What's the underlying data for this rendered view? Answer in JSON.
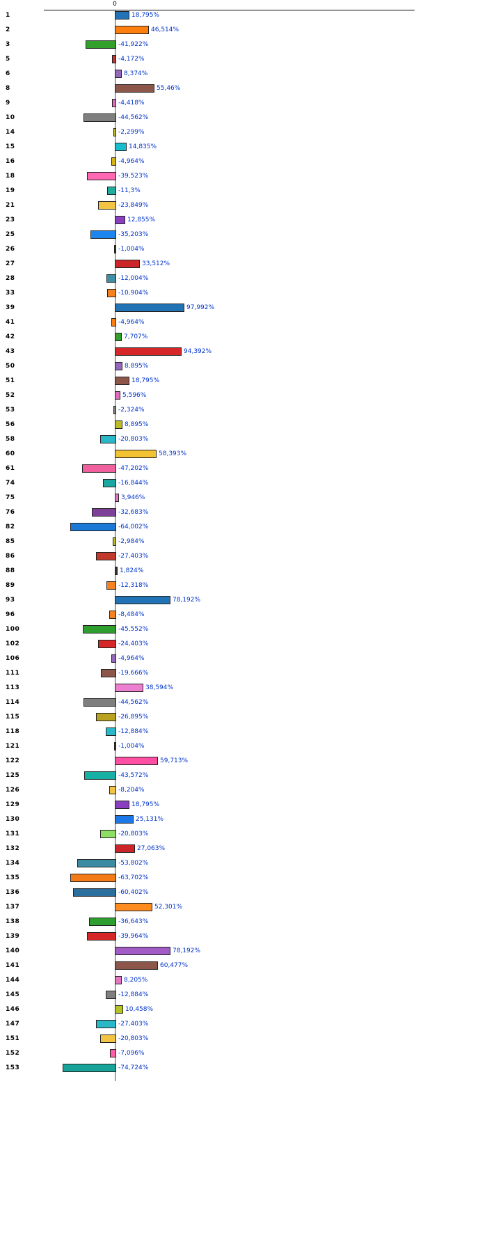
{
  "chart": {
    "value_label_color": "#0033cc",
    "axis_color": "#000000"
  },
  "chart_data": {
    "type": "bar",
    "orientation": "horizontal",
    "title": "",
    "xlabel": "",
    "ylabel": "",
    "value_unit": "%",
    "decimal_separator": ",",
    "xlim": [
      -80,
      100
    ],
    "x_axis": {
      "position": "top",
      "zero_tick_label": "0"
    },
    "grid": false,
    "legend": false,
    "rows": [
      {
        "id": "1",
        "label": "18,795%",
        "value": 18.795,
        "color": "#2273b5"
      },
      {
        "id": "2",
        "label": "46,514%",
        "value": 46.514,
        "color": "#ff7f0e"
      },
      {
        "id": "3",
        "label": "-41,922%",
        "value": -41.922,
        "color": "#33a02c"
      },
      {
        "id": "5",
        "label": "-4,172%",
        "value": -4.172,
        "color": "#c62f2f"
      },
      {
        "id": "6",
        "label": "8,374%",
        "value": 8.374,
        "color": "#9467bd"
      },
      {
        "id": "8",
        "label": "55,46%",
        "value": 55.46,
        "color": "#8c564b"
      },
      {
        "id": "9",
        "label": "-4,418%",
        "value": -4.418,
        "color": "#e06bbf"
      },
      {
        "id": "10",
        "label": "-44,562%",
        "value": -44.562,
        "color": "#7f7f7f"
      },
      {
        "id": "14",
        "label": "-2,299%",
        "value": -2.299,
        "color": "#bcbd22"
      },
      {
        "id": "15",
        "label": "14,835%",
        "value": 14.835,
        "color": "#17becf"
      },
      {
        "id": "16",
        "label": "-4,964%",
        "value": -4.964,
        "color": "#d9b311"
      },
      {
        "id": "18",
        "label": "-39,523%",
        "value": -39.523,
        "color": "#ff69b4"
      },
      {
        "id": "19",
        "label": "-11,3%",
        "value": -11.3,
        "color": "#1fae9e"
      },
      {
        "id": "21",
        "label": "-23,849%",
        "value": -23.849,
        "color": "#f3c343"
      },
      {
        "id": "23",
        "label": "12,855%",
        "value": 12.855,
        "color": "#8a3fbf"
      },
      {
        "id": "25",
        "label": "-35,203%",
        "value": -35.203,
        "color": "#1c86ee"
      },
      {
        "id": "26",
        "label": "-1,004%",
        "value": -1.004,
        "color": "#333333"
      },
      {
        "id": "27",
        "label": "33,512%",
        "value": 33.512,
        "color": "#cc2529"
      },
      {
        "id": "28",
        "label": "-12,004%",
        "value": -12.004,
        "color": "#3e8ea5"
      },
      {
        "id": "33",
        "label": "-10,904%",
        "value": -10.904,
        "color": "#f5811f"
      },
      {
        "id": "39",
        "label": "97,992%",
        "value": 97.992,
        "color": "#2273b5"
      },
      {
        "id": "41",
        "label": "-4,964%",
        "value": -4.964,
        "color": "#ff7f0e"
      },
      {
        "id": "42",
        "label": "7,707%",
        "value": 7.707,
        "color": "#33a02c"
      },
      {
        "id": "43",
        "label": "94,392%",
        "value": 94.392,
        "color": "#d62728"
      },
      {
        "id": "50",
        "label": "8,895%",
        "value": 8.895,
        "color": "#9467bd"
      },
      {
        "id": "51",
        "label": "18,795%",
        "value": 18.795,
        "color": "#8c564b"
      },
      {
        "id": "52",
        "label": "5,596%",
        "value": 5.596,
        "color": "#e06bbf"
      },
      {
        "id": "53",
        "label": "-2,324%",
        "value": -2.324,
        "color": "#7f7f7f"
      },
      {
        "id": "56",
        "label": "8,895%",
        "value": 8.895,
        "color": "#bcbd22"
      },
      {
        "id": "58",
        "label": "-20,803%",
        "value": -20.803,
        "color": "#2ab8c9"
      },
      {
        "id": "60",
        "label": "58,393%",
        "value": 58.393,
        "color": "#f3c232"
      },
      {
        "id": "61",
        "label": "-47,202%",
        "value": -47.202,
        "color": "#f0609e"
      },
      {
        "id": "74",
        "label": "-16,844%",
        "value": -16.844,
        "color": "#1aa8a0"
      },
      {
        "id": "75",
        "label": "3,946%",
        "value": 3.946,
        "color": "#e377c2"
      },
      {
        "id": "76",
        "label": "-32,683%",
        "value": -32.683,
        "color": "#7d3f98"
      },
      {
        "id": "82",
        "label": "-64,002%",
        "value": -64.002,
        "color": "#1c78d6"
      },
      {
        "id": "85",
        "label": "-2,984%",
        "value": -2.984,
        "color": "#bcbd22"
      },
      {
        "id": "86",
        "label": "-27,403%",
        "value": -27.403,
        "color": "#c0392b"
      },
      {
        "id": "88",
        "label": "1,824%",
        "value": 1.824,
        "color": "#333333"
      },
      {
        "id": "89",
        "label": "-12,318%",
        "value": -12.318,
        "color": "#f5811f"
      },
      {
        "id": "93",
        "label": "78,192%",
        "value": 78.192,
        "color": "#2273b5"
      },
      {
        "id": "96",
        "label": "-8,484%",
        "value": -8.484,
        "color": "#f5811f"
      },
      {
        "id": "100",
        "label": "-45,552%",
        "value": -45.552,
        "color": "#2e9e2e"
      },
      {
        "id": "102",
        "label": "-24,403%",
        "value": -24.403,
        "color": "#d62728"
      },
      {
        "id": "106",
        "label": "-4,964%",
        "value": -4.964,
        "color": "#9467bd"
      },
      {
        "id": "111",
        "label": "-19,666%",
        "value": -19.666,
        "color": "#8c564b"
      },
      {
        "id": "113",
        "label": "38,594%",
        "value": 38.594,
        "color": "#ed7fd0"
      },
      {
        "id": "114",
        "label": "-44,562%",
        "value": -44.562,
        "color": "#7f7f7f"
      },
      {
        "id": "115",
        "label": "-26,895%",
        "value": -26.895,
        "color": "#b8a220"
      },
      {
        "id": "118",
        "label": "-12,884%",
        "value": -12.884,
        "color": "#2ab8c9"
      },
      {
        "id": "121",
        "label": "-1,004%",
        "value": -1.004,
        "color": "#333333"
      },
      {
        "id": "122",
        "label": "59,713%",
        "value": 59.713,
        "color": "#ff4fa3"
      },
      {
        "id": "125",
        "label": "-43,572%",
        "value": -43.572,
        "color": "#17b0a5"
      },
      {
        "id": "126",
        "label": "-8,204%",
        "value": -8.204,
        "color": "#f3c343"
      },
      {
        "id": "129",
        "label": "18,795%",
        "value": 18.795,
        "color": "#8a3fbf"
      },
      {
        "id": "130",
        "label": "25,131%",
        "value": 25.131,
        "color": "#1c78e6"
      },
      {
        "id": "131",
        "label": "-20,803%",
        "value": -20.803,
        "color": "#8ede63"
      },
      {
        "id": "132",
        "label": "27,063%",
        "value": 27.063,
        "color": "#cc2529"
      },
      {
        "id": "134",
        "label": "-53,802%",
        "value": -53.802,
        "color": "#3b8ca3"
      },
      {
        "id": "135",
        "label": "-63,702%",
        "value": -63.702,
        "color": "#f57b16"
      },
      {
        "id": "136",
        "label": "-60,402%",
        "value": -60.402,
        "color": "#2a6f9e"
      },
      {
        "id": "137",
        "label": "52,301%",
        "value": 52.301,
        "color": "#ff8c1f"
      },
      {
        "id": "138",
        "label": "-36,643%",
        "value": -36.643,
        "color": "#2e9e2e"
      },
      {
        "id": "139",
        "label": "-39,964%",
        "value": -39.964,
        "color": "#d62728"
      },
      {
        "id": "140",
        "label": "78,192%",
        "value": 78.192,
        "color": "#a05bc4"
      },
      {
        "id": "141",
        "label": "60,477%",
        "value": 60.477,
        "color": "#8c564b"
      },
      {
        "id": "144",
        "label": "8,205%",
        "value": 8.205,
        "color": "#e377c2"
      },
      {
        "id": "145",
        "label": "-12,884%",
        "value": -12.884,
        "color": "#7f7f7f"
      },
      {
        "id": "146",
        "label": "10,458%",
        "value": 10.458,
        "color": "#b5c422"
      },
      {
        "id": "147",
        "label": "-27,403%",
        "value": -27.403,
        "color": "#2ab8c9"
      },
      {
        "id": "151",
        "label": "-20,803%",
        "value": -20.803,
        "color": "#f3c343"
      },
      {
        "id": "152",
        "label": "-7,096%",
        "value": -7.096,
        "color": "#ff5fa8"
      },
      {
        "id": "153",
        "label": "-74,724%",
        "value": -74.724,
        "color": "#17a398"
      }
    ]
  }
}
